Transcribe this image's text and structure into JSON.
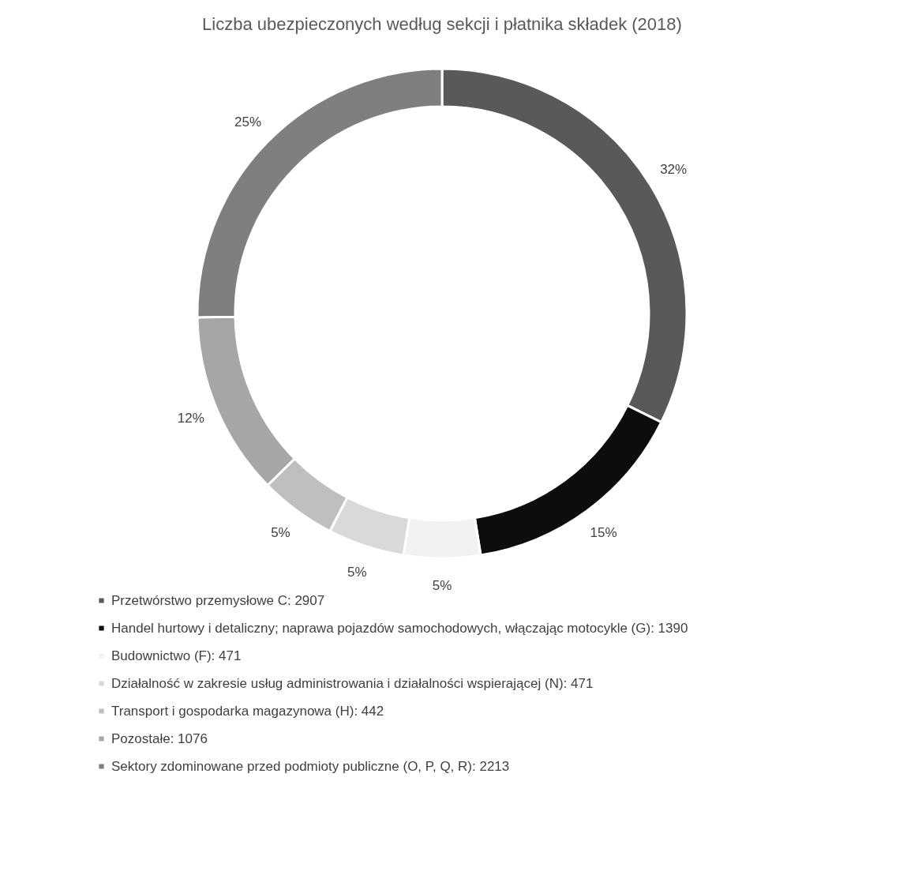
{
  "chart_data": {
    "type": "donut",
    "title": "Liczba ubezpieczonych według sekcji i płatnika składek (2018)",
    "categories": [
      "Przetwórstwo przemysłowe C: 2907",
      "Handel hurtowy i detaliczny; naprawa pojazdów samochodowych, włączając motocykle (G): 1390",
      "Budownictwo (F): 471",
      "Działalność w zakresie usług administrowania i działalności wspierającej (N): 471",
      "Transport i gospodarka magazynowa (H): 442",
      "Pozostałe: 1076",
      "Sektory zdominowane przed podmioty publiczne (O, P, Q, R): 2213"
    ],
    "values": [
      32,
      15,
      5,
      5,
      5,
      12,
      25
    ],
    "value_labels": [
      "32%",
      "15%",
      "5%",
      "5%",
      "5%",
      "12%",
      "25%"
    ],
    "colors": [
      "#595959",
      "#0d0d0d",
      "#f2f2f2",
      "#d9d9d9",
      "#bfbfbf",
      "#a6a6a6",
      "#7f7f7f"
    ],
    "legend": "bottom"
  }
}
